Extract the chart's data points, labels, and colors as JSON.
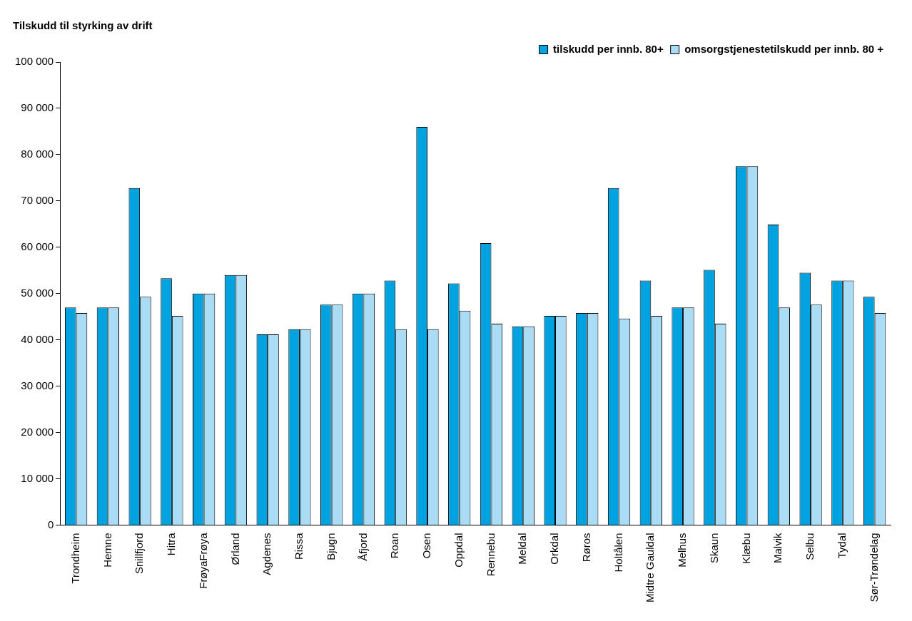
{
  "chart_data": {
    "type": "bar",
    "title": "Tilskudd til styrking av drift",
    "categories": [
      "Trondheim",
      "Hemne",
      "Snillfjord",
      "Hitra",
      "FrøyaFrøya",
      "Ørland",
      "Agdenes",
      "Rissa",
      "Bjugn",
      "Åfjord",
      "Roan",
      "Osen",
      "Oppdal",
      "Rennebu",
      "Meldal",
      "Orkdal",
      "Røros",
      "Holtålen",
      "Midtre Gauldal",
      "Melhus",
      "Skaun",
      "Klæbu",
      "Malvik",
      "Selbu",
      "Tydal",
      "Sør-Trøndelag"
    ],
    "series": [
      {
        "name": "tilskudd per innb. 80+",
        "color": "#00a2e0",
        "values": [
          47000,
          47000,
          72800,
          53300,
          50000,
          54000,
          41200,
          42300,
          47600,
          50000,
          52800,
          86000,
          52200,
          60900,
          42900,
          45200,
          45800,
          72800,
          52800,
          47000,
          55100,
          77500,
          64900,
          54500,
          52800,
          49300
        ]
      },
      {
        "name": "omsorgstjenestetilskudd per innb. 80 +",
        "color": "#aadcf5",
        "values": [
          45800,
          47000,
          49300,
          45200,
          50000,
          54000,
          41200,
          42300,
          47600,
          50000,
          42300,
          42300,
          46300,
          43500,
          42900,
          45200,
          45800,
          44600,
          45200,
          47000,
          43500,
          77500,
          47000,
          47600,
          52800,
          45800
        ]
      }
    ],
    "ylim": [
      0,
      100000
    ],
    "yticks": [
      {
        "value": 0,
        "label": "0"
      },
      {
        "value": 10000,
        "label": "10 000"
      },
      {
        "value": 20000,
        "label": "20 000"
      },
      {
        "value": 30000,
        "label": "30 000"
      },
      {
        "value": 40000,
        "label": "40 000"
      },
      {
        "value": 50000,
        "label": "50 000"
      },
      {
        "value": 60000,
        "label": "60 000"
      },
      {
        "value": 70000,
        "label": "70 000"
      },
      {
        "value": 80000,
        "label": "80 000"
      },
      {
        "value": 90000,
        "label": "90 000"
      },
      {
        "value": 100000,
        "label": "100 000"
      }
    ],
    "grid": false,
    "legend": "top right"
  }
}
